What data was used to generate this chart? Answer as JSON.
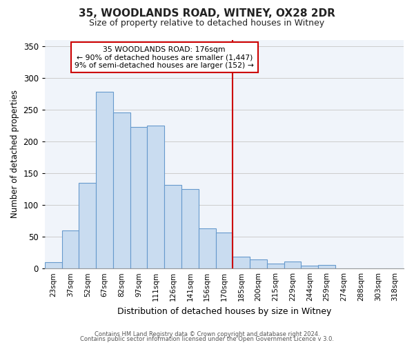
{
  "title": "35, WOODLANDS ROAD, WITNEY, OX28 2DR",
  "subtitle": "Size of property relative to detached houses in Witney",
  "xlabel": "Distribution of detached houses by size in Witney",
  "ylabel": "Number of detached properties",
  "bar_labels": [
    "23sqm",
    "37sqm",
    "52sqm",
    "67sqm",
    "82sqm",
    "97sqm",
    "111sqm",
    "126sqm",
    "141sqm",
    "156sqm",
    "170sqm",
    "185sqm",
    "200sqm",
    "215sqm",
    "229sqm",
    "244sqm",
    "259sqm",
    "274sqm",
    "288sqm",
    "303sqm",
    "318sqm"
  ],
  "bar_values": [
    10,
    60,
    135,
    278,
    245,
    223,
    225,
    132,
    125,
    63,
    57,
    19,
    14,
    8,
    11,
    4,
    6,
    0,
    0,
    0,
    0
  ],
  "bar_color": "#c9dcf0",
  "bar_edge_color": "#6699cc",
  "vline_x_idx": 10.5,
  "vline_color": "#cc0000",
  "annotation_title": "35 WOODLANDS ROAD: 176sqm",
  "annotation_line1": "← 90% of detached houses are smaller (1,447)",
  "annotation_line2": "9% of semi-detached houses are larger (152) →",
  "annotation_box_color": "#ffffff",
  "annotation_box_edge": "#cc0000",
  "ylim": [
    0,
    360
  ],
  "yticks": [
    0,
    50,
    100,
    150,
    200,
    250,
    300,
    350
  ],
  "footer1": "Contains HM Land Registry data © Crown copyright and database right 2024.",
  "footer2": "Contains public sector information licensed under the Open Government Licence v 3.0.",
  "background_color": "#f0f4fa",
  "grid_color": "#cccccc"
}
